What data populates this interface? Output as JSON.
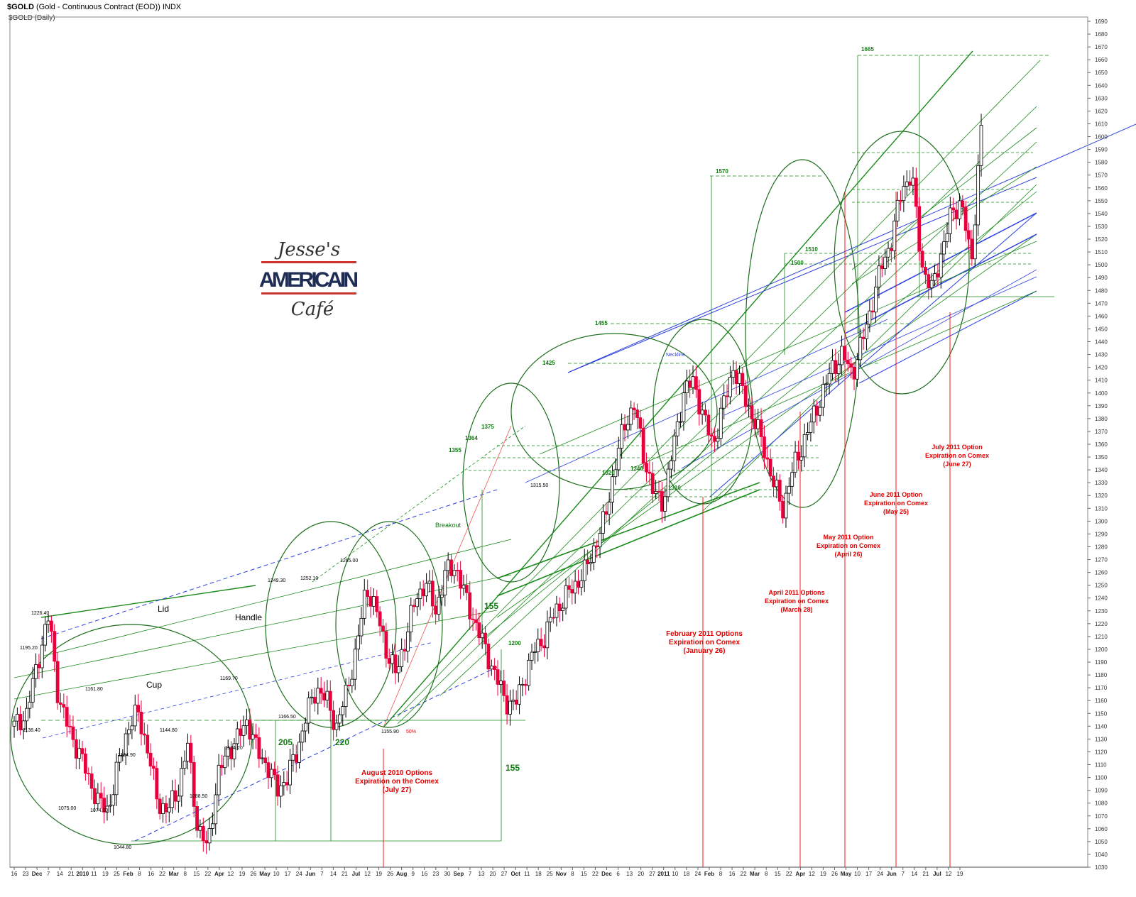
{
  "header": {
    "symbol": "$GOLD",
    "title_rest": "(Gold - Continuous Contract (EOD)) INDX",
    "subtitle": "$GOLD (Daily)"
  },
  "logo": {
    "line1": "Jesse's",
    "line2": "AMERICAIN",
    "line3": "Café"
  },
  "chart_data": {
    "type": "line",
    "title": "$GOLD (Gold - Continuous Contract (EOD)) INDX",
    "ylim": [
      1030,
      1690
    ],
    "y_ticks": [
      1030,
      1040,
      1050,
      1060,
      1070,
      1080,
      1090,
      1100,
      1110,
      1120,
      1130,
      1140,
      1150,
      1160,
      1170,
      1180,
      1190,
      1200,
      1210,
      1220,
      1230,
      1240,
      1250,
      1260,
      1270,
      1280,
      1290,
      1300,
      1310,
      1320,
      1330,
      1340,
      1350,
      1360,
      1370,
      1380,
      1390,
      1400,
      1410,
      1420,
      1430,
      1440,
      1450,
      1460,
      1470,
      1480,
      1490,
      1500,
      1510,
      1520,
      1530,
      1540,
      1550,
      1560,
      1570,
      1580,
      1590,
      1600,
      1610,
      1620,
      1630,
      1640,
      1650,
      1660,
      1670,
      1680,
      1690
    ],
    "x_ticks": [
      "16",
      "23",
      "Dec",
      "7",
      "14",
      "21",
      "2010",
      "11",
      "19",
      "25",
      "Feb",
      "8",
      "16",
      "22",
      "Mar",
      "8",
      "15",
      "22",
      "Apr",
      "12",
      "19",
      "26",
      "May",
      "10",
      "17",
      "24",
      "Jun",
      "7",
      "14",
      "21",
      "Jul",
      "12",
      "19",
      "26",
      "Aug",
      "9",
      "16",
      "23",
      "30",
      "Sep",
      "7",
      "13",
      "20",
      "27",
      "Oct",
      "11",
      "18",
      "25",
      "Nov",
      "8",
      "15",
      "22",
      "Dec",
      "6",
      "13",
      "20",
      "27",
      "2011",
      "10",
      "18",
      "24",
      "Feb",
      "8",
      "16",
      "22",
      "Mar",
      "8",
      "15",
      "22",
      "Apr",
      "12",
      "19",
      "26",
      "May",
      "10",
      "17",
      "24",
      "Jun",
      "7",
      "14",
      "21",
      "Jul",
      "12",
      "19"
    ],
    "series": [
      {
        "name": "",
        "x": [
          0,
          5,
          10,
          14,
          18,
          22,
          26,
          30,
          34,
          38,
          42,
          46,
          50,
          54,
          58,
          62,
          66,
          70,
          74,
          78,
          82,
          86,
          90,
          94,
          98,
          102,
          106,
          110,
          114,
          118,
          122,
          126,
          130,
          134,
          138,
          142,
          146,
          150,
          154,
          158,
          162,
          166,
          170,
          174,
          178,
          182,
          186,
          190,
          194,
          198,
          202,
          206,
          210,
          214,
          218,
          222,
          226,
          230,
          234,
          238,
          242,
          246,
          250,
          254,
          258,
          262,
          266,
          270,
          274,
          278,
          282,
          286,
          290,
          294,
          298,
          302,
          306,
          310,
          314,
          318,
          322,
          326,
          330,
          334,
          338,
          342,
          346,
          350,
          354,
          358,
          362,
          366,
          370,
          374,
          378,
          382,
          386,
          390
        ],
        "values": [
          1140,
          1150,
          1195,
          1226,
          1160,
          1138,
          1120,
          1100,
          1080,
          1075,
          1110,
          1140,
          1150,
          1120,
          1080,
          1074,
          1090,
          1125,
          1060,
          1045,
          1100,
          1120,
          1130,
          1145,
          1120,
          1110,
          1090,
          1100,
          1120,
          1150,
          1170,
          1160,
          1140,
          1166,
          1200,
          1249,
          1230,
          1200,
          1180,
          1210,
          1240,
          1252,
          1230,
          1260,
          1265,
          1240,
          1220,
          1200,
          1180,
          1160,
          1156,
          1180,
          1200,
          1210,
          1230,
          1240,
          1250,
          1260,
          1280,
          1300,
          1340,
          1375,
          1390,
          1350,
          1320,
          1316,
          1360,
          1400,
          1410,
          1380,
          1360,
          1390,
          1420,
          1400,
          1380,
          1360,
          1330,
          1310,
          1340,
          1360,
          1380,
          1400,
          1420,
          1430,
          1415,
          1440,
          1470,
          1500,
          1520,
          1560,
          1570,
          1500,
          1480,
          1510,
          1540,
          1550,
          1500,
          1607
        ]
      }
    ],
    "price_labels": [
      "1226.40",
      "1195.20",
      "1161.80",
      "1138.40",
      "1075.00",
      "1074.00",
      "1124.90",
      "1044.80",
      "1144.80",
      "1088.50",
      "1124.20",
      "1169.70",
      "1166.50",
      "1249.30",
      "1252.10",
      "1265.00",
      "1155.90",
      "50%",
      "1315.50"
    ],
    "level_labels": [
      "1665",
      "1570",
      "1510",
      "1500",
      "1455",
      "1425",
      "1375",
      "1364",
      "1355",
      "1340",
      "1320",
      "1310",
      "1200"
    ],
    "measure_labels": [
      "205",
      "220",
      "155",
      "155"
    ],
    "pattern_labels": [
      "Lid",
      "Handle",
      "Cup",
      "Breakout",
      "Neckline"
    ],
    "annotations": [
      {
        "lines": [
          "August 2010 Options",
          "Expiration on the Comex",
          "(July 27)"
        ]
      },
      {
        "lines": [
          "February 2011 Options",
          "Expiration on Comex",
          "(January 26)"
        ]
      },
      {
        "lines": [
          "April 2011 Options",
          "Expiration on Comex",
          "(March 28)"
        ]
      },
      {
        "lines": [
          "May 2011 Option",
          "Expiration on Comex",
          "(April 26)"
        ]
      },
      {
        "lines": [
          "June 2011 Option",
          "Expiration on Comex",
          "(May 25)"
        ]
      },
      {
        "lines": [
          "July 2011 Option",
          "Expiration on Comex",
          "(June 27)"
        ]
      }
    ],
    "colors": {
      "up": "#000000",
      "down": "#e8003c",
      "trend_green": "#1a8a1a",
      "trend_blue": "#2b3fe0",
      "annotation": "#e00000"
    },
    "grid": false
  }
}
